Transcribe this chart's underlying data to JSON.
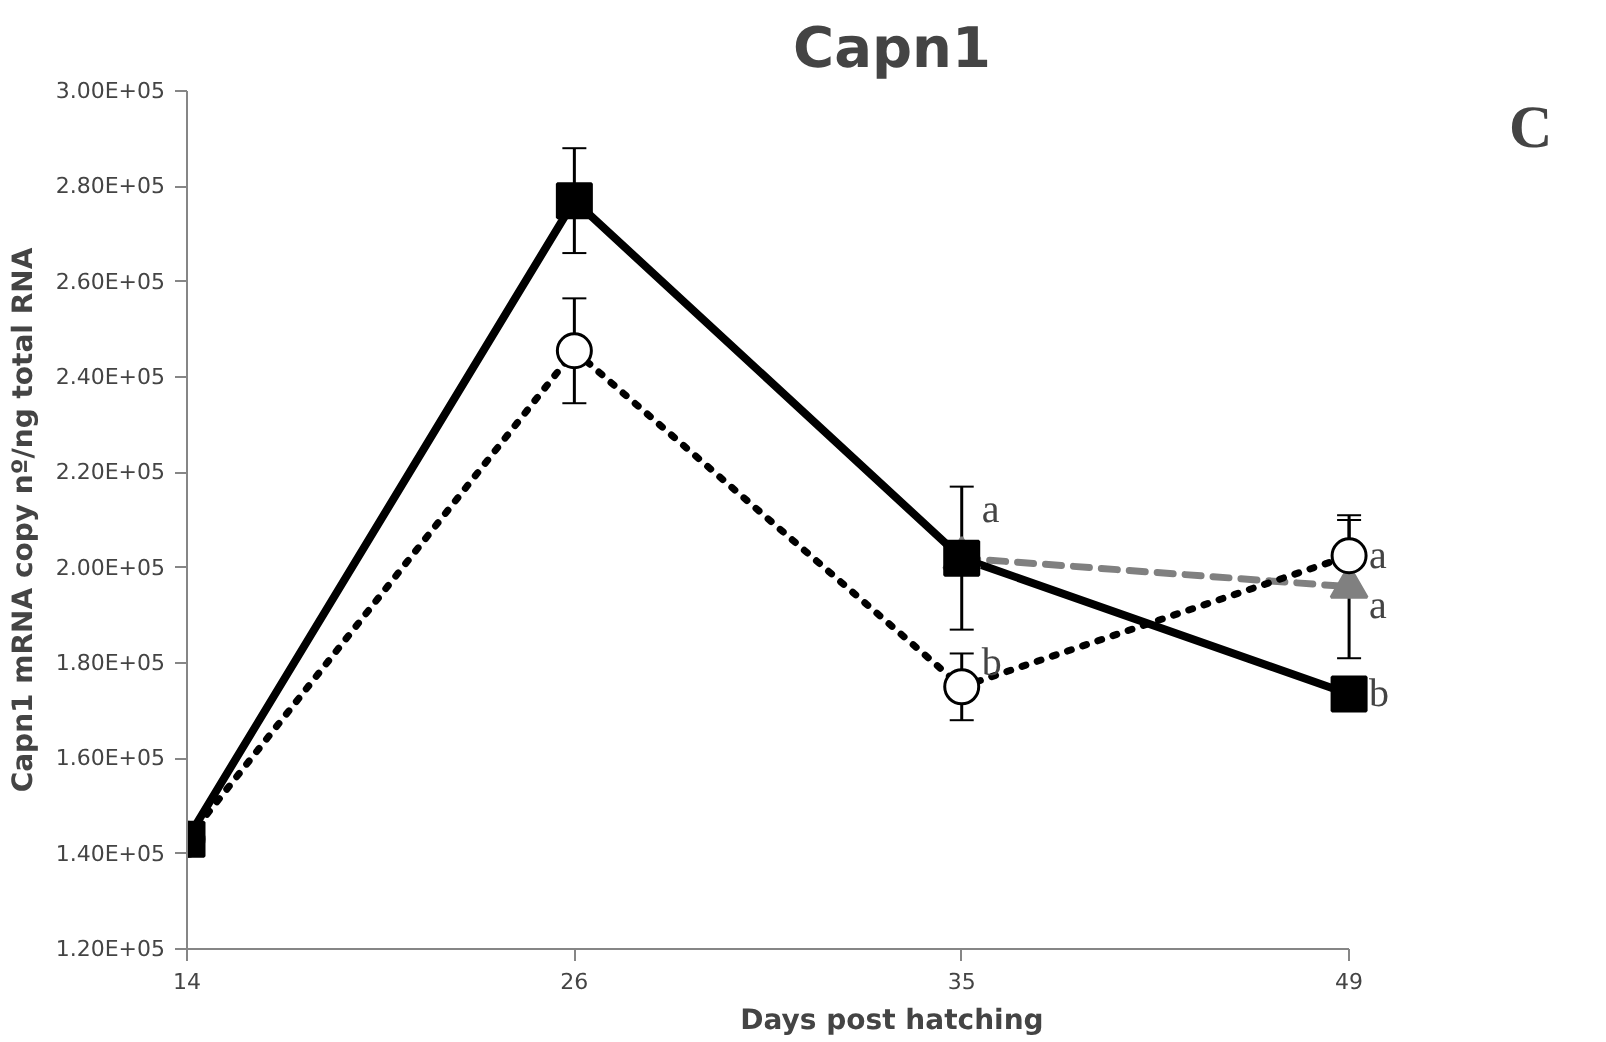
{
  "chart_data": {
    "type": "line",
    "title": "Capn1",
    "xlabel": "Days post hatching",
    "ylabel": "Capn1 mRNA copy nº/ng total RNA",
    "categories": [
      "14",
      "26",
      "35",
      "49"
    ],
    "series": [
      {
        "color": "#808080",
        "marker": "triangle",
        "line_style": "dashed",
        "values": [
          null,
          null,
          202000,
          196000
        ],
        "errors": [
          null,
          null,
          null,
          15000
        ]
      },
      {
        "color": "#000000",
        "marker": "circle",
        "line_style": "dotted",
        "values": [
          143000,
          245500,
          175000,
          202500
        ],
        "errors": [
          null,
          11000,
          7000,
          7500
        ]
      },
      {
        "color": "#000000",
        "marker": "square",
        "line_style": "solid",
        "values": [
          143000,
          277000,
          202000,
          173500
        ],
        "errors": [
          null,
          11000,
          15000,
          null
        ]
      }
    ],
    "ylim": [
      120000,
      300000
    ],
    "yticks": [
      {
        "value": 120000,
        "label": "1.20E+05"
      },
      {
        "value": 140000,
        "label": "1.40E+05"
      },
      {
        "value": 160000,
        "label": "1.60E+05"
      },
      {
        "value": 180000,
        "label": "1.80E+05"
      },
      {
        "value": 200000,
        "label": "2.00E+05"
      },
      {
        "value": 220000,
        "label": "2.20E+05"
      },
      {
        "value": 240000,
        "label": "2.40E+05"
      },
      {
        "value": 260000,
        "label": "2.60E+05"
      },
      {
        "value": 280000,
        "label": "2.80E+05"
      },
      {
        "value": 300000,
        "label": "3.00E+05"
      }
    ],
    "annotations": [
      {
        "text": "a",
        "x": "35",
        "y": 212000
      },
      {
        "text": "b",
        "x": "35",
        "y": 180000
      },
      {
        "text": "a",
        "x": "49",
        "y": 202500
      },
      {
        "text": "a",
        "x": "49",
        "y": 192000
      },
      {
        "text": "b",
        "x": "49",
        "y": 173500
      },
      "C"
    ],
    "grid": false
  }
}
